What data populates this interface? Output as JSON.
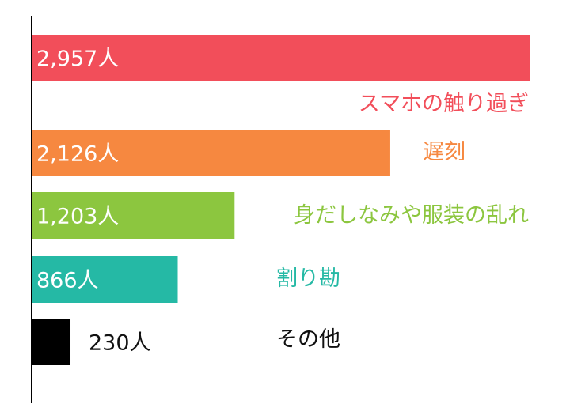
{
  "chart_data": {
    "type": "bar",
    "orientation": "horizontal",
    "title": "",
    "xlabel": "",
    "ylabel": "",
    "xlim": [
      0,
      2957
    ],
    "grid": false,
    "legend": "none",
    "value_suffix": "人",
    "categories": [
      "スマホの触り過ぎ",
      "遅刻",
      "身だしなみや服装の乱れ",
      "割り勘",
      "その他"
    ],
    "values": [
      2957,
      2126,
      1203,
      866,
      230
    ],
    "value_labels": [
      "2,957人",
      "2,126人",
      "1,203人",
      "866人",
      "230人"
    ],
    "colors": [
      "#f24e5a",
      "#f68840",
      "#8cc63f",
      "#25b9a5",
      "#000000"
    ],
    "label_colors": [
      "#f24e5a",
      "#f68840",
      "#8cc63f",
      "#25b9a5",
      "#111111"
    ],
    "value_label_inside": [
      true,
      true,
      true,
      true,
      false
    ]
  }
}
